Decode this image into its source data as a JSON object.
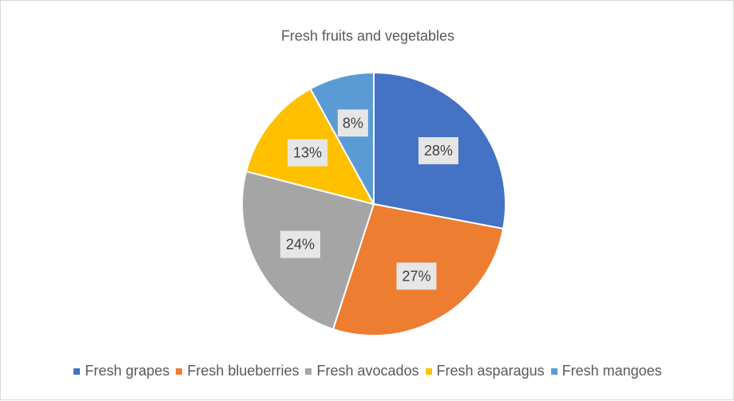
{
  "chart_data": {
    "type": "pie",
    "title": "Fresh fruits and vegetables",
    "legend_position": "bottom",
    "slices": [
      {
        "label": "Fresh grapes",
        "value": 28,
        "display": "28%",
        "color": "#4472c4"
      },
      {
        "label": "Fresh blueberries",
        "value": 27,
        "display": "27%",
        "color": "#ed7d31"
      },
      {
        "label": "Fresh avocados",
        "value": 24,
        "display": "24%",
        "color": "#a5a5a5"
      },
      {
        "label": "Fresh asparagus",
        "value": 13,
        "display": "13%",
        "color": "#ffc000"
      },
      {
        "label": "Fresh mangoes",
        "value": 8,
        "display": "8%",
        "color": "#5b9bd5"
      }
    ]
  }
}
